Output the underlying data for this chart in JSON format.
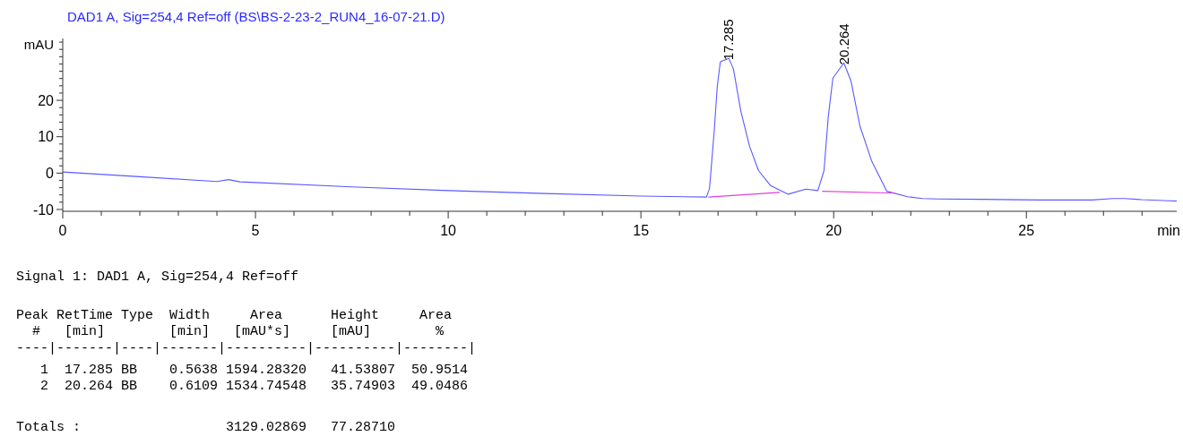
{
  "chart_data": {
    "type": "line",
    "title": "DAD1 A, Sig=254,4 Ref=off (BS\\BS-2-23-2_RUN4_16-07-21.D)",
    "xlabel": "min",
    "ylabel": "mAU",
    "xlim": [
      0,
      28.9
    ],
    "ylim": [
      -10.5,
      37
    ],
    "xticks": [
      0,
      {
        "value": 1,
        "label": null
      },
      {
        "value": 2,
        "label": null
      },
      {
        "value": 3,
        "label": null
      },
      {
        "value": 4,
        "label": null
      },
      5,
      {
        "value": 6,
        "label": null
      },
      {
        "value": 7,
        "label": null
      },
      {
        "value": 8,
        "label": null
      },
      {
        "value": 9,
        "label": null
      },
      10,
      {
        "value": 11,
        "label": null
      },
      {
        "value": 12,
        "label": null
      },
      {
        "value": 13,
        "label": null
      },
      {
        "value": 14,
        "label": null
      },
      15,
      {
        "value": 16,
        "label": null
      },
      {
        "value": 17,
        "label": null
      },
      {
        "value": 18,
        "label": null
      },
      {
        "value": 19,
        "label": null
      },
      20,
      {
        "value": 21,
        "label": null
      },
      {
        "value": 22,
        "label": null
      },
      {
        "value": 23,
        "label": null
      },
      {
        "value": 24,
        "label": null
      },
      25,
      {
        "value": 26,
        "label": null
      },
      {
        "value": 27,
        "label": null
      },
      {
        "value": 28,
        "label": null
      }
    ],
    "yticks": [
      -10,
      {
        "value": -8,
        "label": null
      },
      {
        "value": -6,
        "label": null
      },
      {
        "value": -4,
        "label": null
      },
      {
        "value": -2,
        "label": null
      },
      0,
      {
        "value": 2,
        "label": null
      },
      {
        "value": 4,
        "label": null
      },
      {
        "value": 6,
        "label": null
      },
      {
        "value": 8,
        "label": null
      },
      10,
      {
        "value": 12,
        "label": null
      },
      {
        "value": 14,
        "label": null
      },
      {
        "value": 16,
        "label": null
      },
      {
        "value": 18,
        "label": null
      },
      20,
      {
        "value": 22,
        "label": null
      },
      {
        "value": 24,
        "label": null
      },
      {
        "value": 26,
        "label": null
      },
      {
        "value": 28,
        "label": null
      },
      {
        "value": 30,
        "label": null
      },
      {
        "value": 32,
        "label": null
      },
      {
        "value": 34,
        "label": null
      },
      {
        "value": 36,
        "label": null
      }
    ],
    "grid": false,
    "marker": "none",
    "line_style": "solid",
    "series": [
      {
        "color": "#5a5aff",
        "x": [
          0,
          2,
          4,
          4.3,
          4.6,
          5,
          7.5,
          10,
          12.5,
          15,
          16.7,
          16.78,
          16.9,
          16.98,
          17.06,
          17.285,
          17.4,
          17.59,
          17.82,
          18.05,
          18.36,
          18.82,
          19.28,
          19.59,
          19.75,
          19.86,
          19.98,
          20.264,
          20.45,
          20.68,
          20.99,
          21.38,
          21.92,
          22.3,
          22.69,
          23.8,
          25.33,
          26.7,
          27.24,
          27.55,
          28.0,
          28.7,
          28.9
        ],
        "values": [
          0.3,
          -1.0,
          -2.3,
          -1.8,
          -2.4,
          -2.6,
          -3.8,
          -4.8,
          -5.6,
          -6.3,
          -6.6,
          -4.2,
          11.4,
          23.7,
          30.6,
          31.5,
          28.6,
          17.1,
          7.3,
          0.7,
          -3.4,
          -5.8,
          -4.4,
          -4.8,
          0.7,
          15.5,
          26.1,
          30.3,
          25.3,
          13.0,
          3.2,
          -5.0,
          -6.5,
          -7.0,
          -7.1,
          -7.2,
          -7.4,
          -7.4,
          -7.0,
          -7.0,
          -7.3,
          -7.6,
          -7.7
        ]
      },
      {
        "color": "#e040e0",
        "x": [
          16.75,
          18.6
        ],
        "values": [
          -6.6,
          -5.3
        ]
      },
      {
        "color": "#e040e0",
        "x": [
          19.7,
          21.6
        ],
        "values": [
          -5.0,
          -5.5
        ]
      }
    ],
    "annotations": [
      {
        "text": "17.285",
        "x": 17.285,
        "y": 31.5
      },
      {
        "text": "20.264",
        "x": 20.264,
        "y": 30.3
      },
      "Signal 1: DAD1 A, Sig=254,4 Ref=off",
      "Peak RetTime Type  Width     Area      Height     Area  ",
      "  #   [min]        [min]   [mAU*s]     [mAU]        %   ",
      "----|-------|----|-------|----------|----------|--------|",
      "   1  17.285 BB    0.5638 1594.28320   41.53807  50.9514",
      "   2  20.264 BB    0.6109 1534.74548   35.74903  49.0486",
      "Totals :                  3129.02869   77.28710"
    ]
  }
}
